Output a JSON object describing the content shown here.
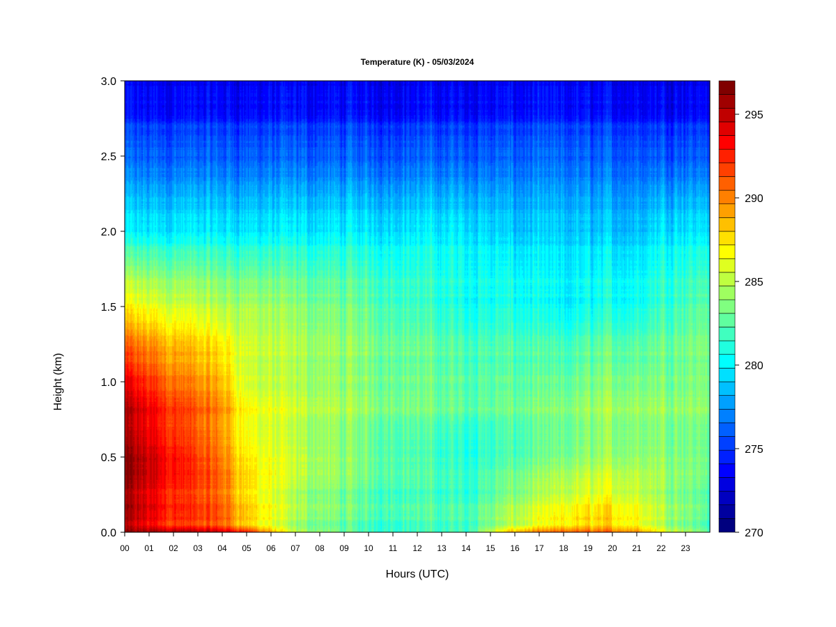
{
  "chart_data": {
    "type": "heatmap",
    "title": "Temperature (K) - 05/03/2024",
    "xlabel": "Hours (UTC)",
    "ylabel": "Height (km)",
    "xlim": [
      0,
      24
    ],
    "ylim": [
      0,
      3
    ],
    "x_ticks": [
      "00",
      "01",
      "02",
      "03",
      "04",
      "05",
      "06",
      "07",
      "08",
      "09",
      "10",
      "11",
      "12",
      "13",
      "14",
      "15",
      "16",
      "17",
      "18",
      "19",
      "20",
      "21",
      "22",
      "23"
    ],
    "y_ticks": [
      "0.0",
      "0.5",
      "1.0",
      "1.5",
      "2.0",
      "2.5",
      "3.0"
    ],
    "colorbar": {
      "min": 270,
      "max": 297,
      "tick_values": [
        "270",
        "275",
        "280",
        "285",
        "290",
        "295"
      ],
      "colors": [
        "#00007f",
        "#00009f",
        "#0000c0",
        "#0000e0",
        "#0000ff",
        "#0020ff",
        "#0040ff",
        "#0060ff",
        "#0080ff",
        "#00a0ff",
        "#00c0ff",
        "#00e0ff",
        "#00ffff",
        "#20ffdf",
        "#40ffbf",
        "#60ff9f",
        "#80ff80",
        "#9fff60",
        "#bfff40",
        "#dfff20",
        "#ffff00",
        "#ffe000",
        "#ffc000",
        "#ffa000",
        "#ff8000",
        "#ff6000",
        "#ff4000",
        "#ff2000",
        "#ff0000",
        "#e00000",
        "#c00000",
        "#a00000",
        "#800000"
      ]
    },
    "field_hours": [
      0,
      2,
      4,
      5,
      7,
      10,
      14,
      16,
      18,
      19.5,
      21,
      22,
      24
    ],
    "field_heights_km": [
      0,
      0.05,
      0.5,
      1.0,
      1.5,
      2.0,
      2.5,
      3.0
    ],
    "field_values_K": [
      [
        296,
        296,
        295,
        293,
        285,
        282,
        282,
        289,
        291,
        291,
        290,
        287,
        283
      ],
      [
        295,
        292,
        291,
        288,
        284,
        282,
        282,
        285,
        287,
        288,
        287,
        285,
        282
      ],
      [
        296,
        293,
        290,
        287,
        285,
        283,
        281,
        282,
        283,
        284,
        284,
        284,
        283
      ],
      [
        294,
        291,
        289,
        286,
        285,
        284,
        283,
        283,
        283,
        284,
        284,
        284,
        284
      ],
      [
        287,
        286,
        285,
        285,
        284,
        283,
        281,
        281,
        280,
        281,
        281,
        282,
        283
      ],
      [
        280,
        280,
        280,
        280,
        280,
        280,
        280,
        279,
        279,
        279,
        279,
        280,
        280
      ],
      [
        276,
        276,
        276,
        276,
        276,
        276,
        276,
        276,
        276,
        276,
        276,
        276,
        276
      ],
      [
        273,
        273,
        273,
        273,
        273,
        273,
        273,
        273,
        273,
        273,
        273,
        273,
        273
      ]
    ]
  }
}
